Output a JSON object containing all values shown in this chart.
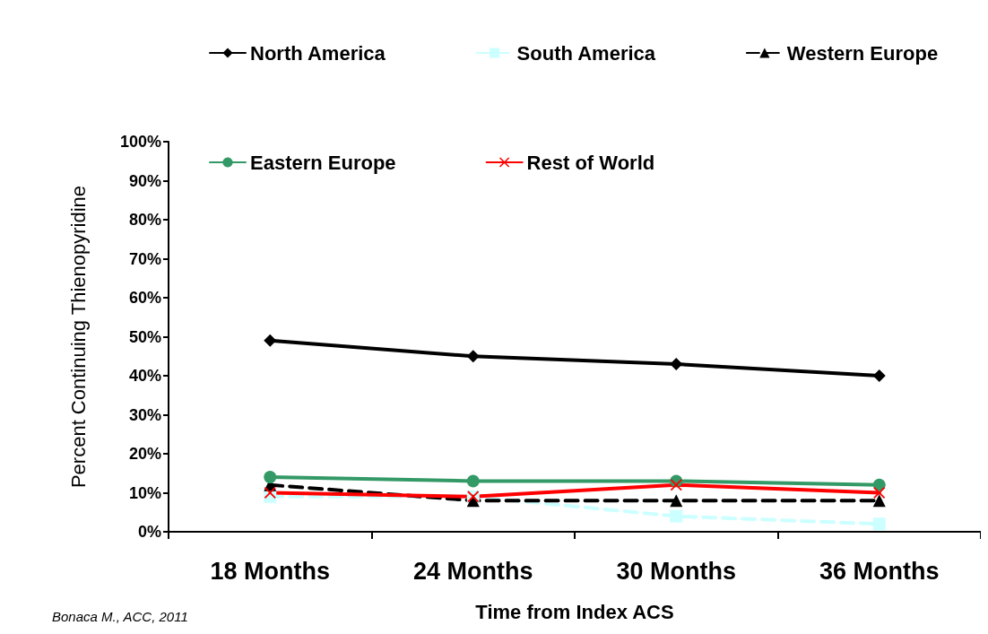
{
  "chart_data": {
    "type": "line",
    "xlabel": "Time from Index ACS",
    "ylabel": "Percent Continuing Thienopyridine",
    "categories": [
      "18 Months",
      "24 Months",
      "30 Months",
      "36 Months"
    ],
    "series": [
      {
        "name": "North America",
        "color": "#000000",
        "marker": "diamond",
        "line_style": "solid",
        "values": [
          49,
          45,
          43,
          40
        ]
      },
      {
        "name": "South America",
        "color": "#ccffff",
        "marker": "square",
        "line_style": "dashed",
        "values": [
          9,
          9,
          4,
          2
        ]
      },
      {
        "name": "Western Europe",
        "color": "#000000",
        "marker": "triangle",
        "line_style": "dashed",
        "values": [
          12,
          8,
          8,
          8
        ]
      },
      {
        "name": "Eastern Europe",
        "color": "#339966",
        "marker": "circle",
        "line_style": "solid",
        "values": [
          14,
          13,
          13,
          12
        ]
      },
      {
        "name": "Rest of World",
        "color": "#ff0000",
        "marker": "cross",
        "line_style": "solid",
        "values": [
          10,
          9,
          12,
          10
        ]
      }
    ],
    "ylim": [
      0,
      100
    ],
    "yticks": [
      {
        "value": 0,
        "label": "0%"
      },
      {
        "value": 10,
        "label": "10%"
      },
      {
        "value": 20,
        "label": "20%"
      },
      {
        "value": 30,
        "label": "30%"
      },
      {
        "value": 40,
        "label": "40%"
      },
      {
        "value": 50,
        "label": "50%"
      },
      {
        "value": 60,
        "label": "60%"
      },
      {
        "value": 70,
        "label": "70%"
      },
      {
        "value": 80,
        "label": "80%"
      },
      {
        "value": 90,
        "label": "90%"
      },
      {
        "value": 100,
        "label": "100%"
      }
    ],
    "legend": "top",
    "annotations": [
      "Bonaca M., ACC, 2011"
    ]
  }
}
